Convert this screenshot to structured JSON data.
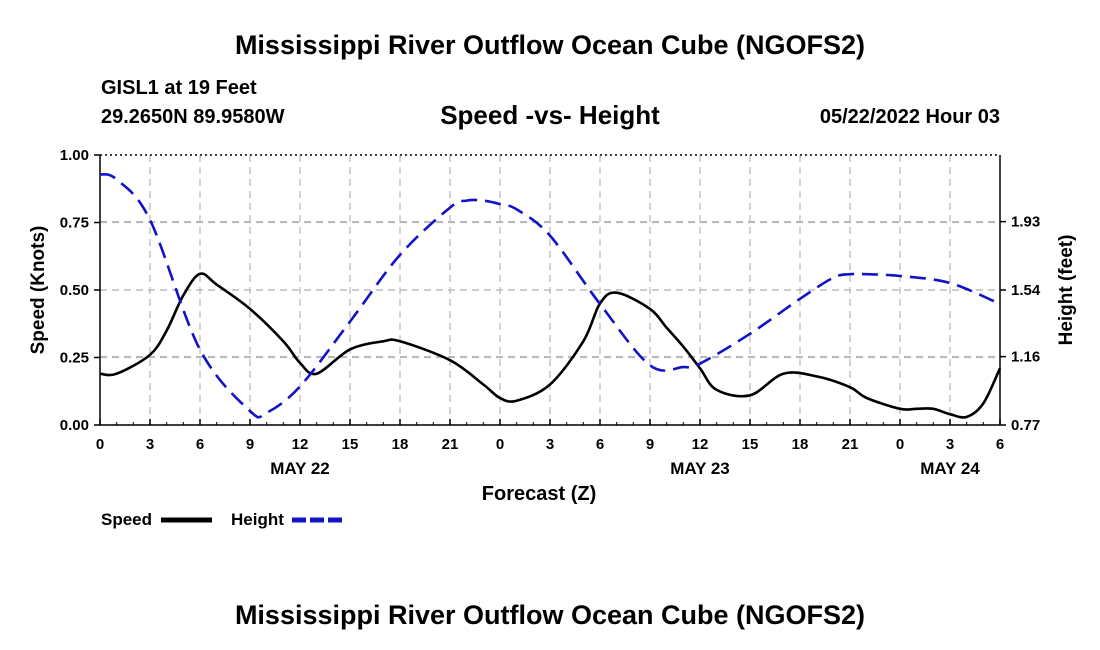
{
  "header": {
    "title": "Mississippi River Outflow Ocean Cube (NGOFS2)",
    "station": "GISL1 at 19 Feet",
    "coordinates": "29.2650N  89.9580W",
    "subtitle": "Speed -vs- Height",
    "timestamp": "05/22/2022 Hour 03"
  },
  "footer": {
    "title": "Mississippi River Outflow Ocean Cube (NGOFS2)"
  },
  "chart_data": {
    "type": "line",
    "xlabel": "Forecast (Z)",
    "ylabel": "Speed (Knots)",
    "y2label": "Height (feet)",
    "x_range": [
      0,
      54
    ],
    "x_ticks": [
      0,
      3,
      6,
      9,
      12,
      15,
      18,
      21,
      24,
      27,
      30,
      33,
      36,
      39,
      42,
      45,
      48,
      51,
      54
    ],
    "x_tick_labels": [
      "0",
      "3",
      "6",
      "9",
      "12",
      "15",
      "18",
      "21",
      "0",
      "3",
      "6",
      "9",
      "12",
      "15",
      "18",
      "21",
      "0",
      "3",
      "6"
    ],
    "date_labels": [
      {
        "x": 12,
        "label": "MAY 22"
      },
      {
        "x": 36,
        "label": "MAY 23"
      },
      {
        "x": 51,
        "label": "MAY 24"
      }
    ],
    "y_range": [
      0,
      1.0
    ],
    "y_ticks": [
      0,
      0.25,
      0.5,
      0.75,
      1.0
    ],
    "y_tick_labels": [
      "0.00",
      "0.25",
      "0.50",
      "0.75",
      "1.00"
    ],
    "y2_range": [
      0.77,
      2.31
    ],
    "y2_ticks": [
      0.77,
      1.16,
      1.54,
      1.93
    ],
    "y2_tick_labels": [
      "0.77",
      "1.16",
      "1.54",
      "1.93"
    ],
    "grid": true,
    "series": [
      {
        "name": "Speed",
        "axis": "left",
        "color": "#000000",
        "style": "solid",
        "x": [
          0,
          1,
          3,
          4,
          5,
          6,
          7,
          9,
          11,
          12,
          13,
          15,
          17,
          18,
          21,
          23,
          24,
          25,
          27,
          29,
          30,
          31,
          33,
          34,
          35,
          36,
          37,
          39,
          41,
          43,
          45,
          46,
          48,
          49,
          50,
          51,
          52,
          53,
          54
        ],
        "values": [
          0.19,
          0.19,
          0.26,
          0.35,
          0.48,
          0.56,
          0.52,
          0.43,
          0.31,
          0.23,
          0.19,
          0.28,
          0.31,
          0.31,
          0.24,
          0.15,
          0.1,
          0.09,
          0.15,
          0.31,
          0.45,
          0.49,
          0.43,
          0.36,
          0.29,
          0.21,
          0.13,
          0.11,
          0.19,
          0.18,
          0.14,
          0.1,
          0.06,
          0.06,
          0.06,
          0.04,
          0.03,
          0.08,
          0.21
        ]
      },
      {
        "name": "Height",
        "axis": "right",
        "color": "#1212c8",
        "style": "dashed",
        "x": [
          0,
          1,
          3,
          6,
          9,
          10,
          12,
          15,
          18,
          21,
          22,
          23,
          24,
          25,
          27,
          30,
          33,
          35,
          36,
          39,
          42,
          44,
          45,
          46,
          48,
          51,
          54
        ],
        "values": [
          2.2,
          2.17,
          1.94,
          1.2,
          0.85,
          0.84,
          0.99,
          1.36,
          1.74,
          2.01,
          2.05,
          2.05,
          2.03,
          2.0,
          1.85,
          1.46,
          1.11,
          1.1,
          1.12,
          1.29,
          1.49,
          1.61,
          1.63,
          1.63,
          1.62,
          1.58,
          1.46
        ]
      }
    ],
    "legend": [
      {
        "label": "Speed",
        "color": "#000000",
        "style": "solid"
      },
      {
        "label": "Height",
        "color": "#1212c8",
        "style": "dashed"
      }
    ],
    "legend_position": "bottom-left"
  }
}
